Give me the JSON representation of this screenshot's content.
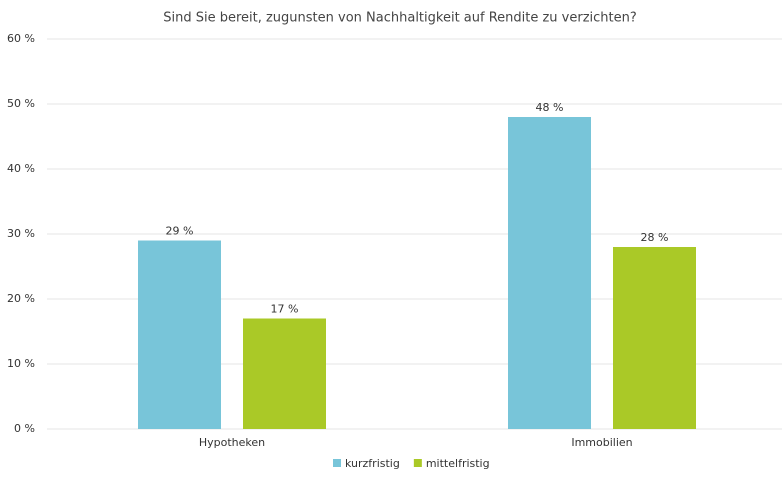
{
  "chart_data": {
    "type": "bar",
    "title": "Sind Sie bereit, zugunsten von Nachhaltigkeit auf Rendite zu verzichten?",
    "categories": [
      "Hypotheken",
      "Immobilien"
    ],
    "series": [
      {
        "name": "kurzfristig",
        "color": "#78c5d9",
        "values": [
          29,
          48
        ],
        "value_labels": [
          "29 %",
          "48 %"
        ]
      },
      {
        "name": "mittelfristig",
        "color": "#aac927",
        "values": [
          17,
          28
        ],
        "value_labels": [
          "17 %",
          "28 %"
        ]
      }
    ],
    "ylim": [
      0,
      60
    ],
    "yticks": [
      {
        "value": 0,
        "label": "0 %"
      },
      {
        "value": 10,
        "label": "10 %"
      },
      {
        "value": 20,
        "label": "20 %"
      },
      {
        "value": 30,
        "label": "30 %"
      },
      {
        "value": 40,
        "label": "40 %"
      },
      {
        "value": 50,
        "label": "50 %"
      },
      {
        "value": 60,
        "label": "60 %"
      }
    ],
    "grid": true,
    "legend": "bottom"
  }
}
